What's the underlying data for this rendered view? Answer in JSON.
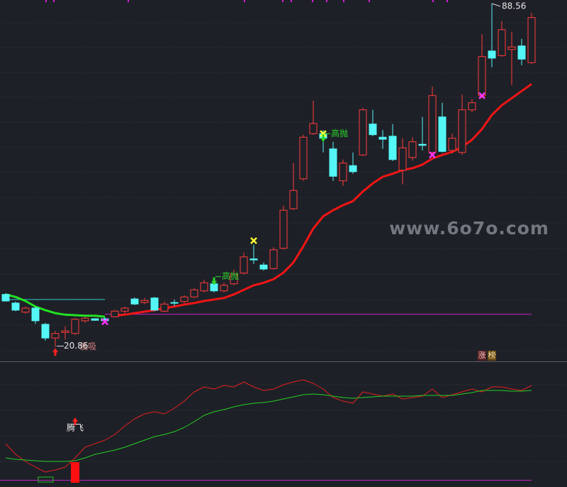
{
  "chart_data": [
    {
      "type": "candlestick",
      "open": [
        31.2,
        29.5,
        27.7,
        28.5,
        25.3,
        22.6,
        23.7,
        23.5,
        26.0,
        26.4,
        26.4,
        26.8,
        27.9,
        30.3,
        29.6,
        30.5,
        27.9,
        29.6,
        29.8,
        30.7,
        31.9,
        33.3,
        31.9,
        33.3,
        35.4,
        38.2,
        37.0,
        36.3,
        40.3,
        48.1,
        54.0,
        62.9,
        62.9,
        59.9,
        53.6,
        56.6,
        58.7,
        64.8,
        62.2,
        62.4,
        55.7,
        58.2,
        60.8,
        59.2,
        66.2,
        59.6,
        59.2,
        67.6,
        70.4,
        79.2,
        78.3,
        79.5,
        80.2,
        76.9
      ],
      "high": [
        31.4,
        29.8,
        28.8,
        28.8,
        25.6,
        24.0,
        24.9,
        26.5,
        26.8,
        26.5,
        26.7,
        28.1,
        28.8,
        30.6,
        30.5,
        30.7,
        29.8,
        30.2,
        31.0,
        32.4,
        34.1,
        33.8,
        33.5,
        36.1,
        39.4,
        41.0,
        37.5,
        40.5,
        48.7,
        57.1,
        62.7,
        69.4,
        63.6,
        61.3,
        57.8,
        59.2,
        68.0,
        67.6,
        63.6,
        64.8,
        62.0,
        62.2,
        66.2,
        72.2,
        69.0,
        62.9,
        70.6,
        69.7,
        82.5,
        88.56,
        85.1,
        83.0,
        81.6,
        86.7
      ],
      "low": [
        29.8,
        27.9,
        27.4,
        25.4,
        22.1,
        20.86,
        22.3,
        23.2,
        25.6,
        26.0,
        25.8,
        26.7,
        27.4,
        29.1,
        29.3,
        27.9,
        27.7,
        28.9,
        29.5,
        30.5,
        31.6,
        31.6,
        31.6,
        33.0,
        35.1,
        37.2,
        35.9,
        36.1,
        40.0,
        47.8,
        53.6,
        62.7,
        59.2,
        53.6,
        52.6,
        55.0,
        58.5,
        62.4,
        59.9,
        57.5,
        52.9,
        57.6,
        59.6,
        58.7,
        59.2,
        59.0,
        58.7,
        67.1,
        69.9,
        76.0,
        78.1,
        72.5,
        76.4,
        76.7
      ],
      "close": [
        29.9,
        28.1,
        28.5,
        26.0,
        22.6,
        23.5,
        24.0,
        26.3,
        26.5,
        26.1,
        26.0,
        27.9,
        28.5,
        29.3,
        30.0,
        28.1,
        29.3,
        29.5,
        30.7,
        32.1,
        33.5,
        31.9,
        33.0,
        35.2,
        38.6,
        38.0,
        36.2,
        40.0,
        47.8,
        51.7,
        62.2,
        64.9,
        62.0,
        54.5,
        57.1,
        55.4,
        67.6,
        62.7,
        61.8,
        57.8,
        60.1,
        61.3,
        60.6,
        70.4,
        59.4,
        62.0,
        67.6,
        69.0,
        78.1,
        77.8,
        83.4,
        80.0,
        77.6,
        85.8
      ],
      "up_color": "#ff3b3b",
      "down_color": "#54f6f6",
      "ylim": [
        19.26,
        89.26
      ],
      "series": [
        {
          "color": "#22e222",
          "values": [
            31.2,
            30.7,
            29.9,
            28.8,
            28.1,
            27.5,
            27.2,
            27.1,
            27.0,
            27.0,
            26.8,
            null,
            null,
            null,
            null,
            null,
            null,
            null,
            null,
            null,
            null,
            null,
            null,
            null,
            null,
            null,
            null,
            null,
            null,
            null,
            null,
            null,
            null,
            null,
            null,
            null,
            null,
            null,
            null,
            null,
            null,
            null,
            null,
            null,
            null,
            null,
            null,
            null,
            null,
            null,
            null,
            null,
            null,
            null
          ]
        },
        {
          "color": "#f01515",
          "values": [
            null,
            null,
            null,
            null,
            null,
            null,
            null,
            null,
            null,
            null,
            null,
            27.0,
            27.2,
            27.5,
            27.8,
            28.1,
            28.5,
            28.8,
            29.2,
            29.5,
            29.9,
            30.2,
            30.5,
            31.2,
            32.1,
            33.0,
            33.5,
            34.2,
            35.5,
            37.5,
            40.7,
            44.2,
            46.6,
            47.8,
            48.8,
            49.6,
            51.5,
            53.1,
            54.4,
            55.0,
            55.7,
            56.1,
            56.8,
            58.0,
            58.7,
            59.3,
            60.3,
            61.7,
            63.8,
            66.6,
            68.5,
            69.9,
            71.3,
            72.7
          ]
        }
      ],
      "levels": [
        {
          "value": 30.2,
          "color": "#37c8d0",
          "from": 0,
          "to": 10
        },
        {
          "value": 27.3,
          "color": "#c71fc7",
          "from": 10,
          "to": 53
        }
      ],
      "markers": [
        {
          "index": 10,
          "value": 25.8,
          "color": "#ff33ff"
        },
        {
          "index": 43,
          "value": 58.7,
          "color": "#ff33ff"
        },
        {
          "index": 48,
          "value": 70.4,
          "color": "#ff33ff"
        },
        {
          "index": 25,
          "value": 41.8,
          "color": "#ffff33"
        },
        {
          "index": 32,
          "value": 62.9,
          "color": "#ffff33"
        }
      ],
      "annotations": [
        {
          "text": "高抛",
          "index": 21,
          "value": 34.7,
          "arrow": "down",
          "color": "#2bd62b"
        },
        {
          "text": "高抛",
          "index": 32,
          "value": 62.9,
          "arrow": "down",
          "color": "#2bd62b"
        },
        {
          "text": "低吸",
          "index": 5,
          "value": 20.9,
          "arrow": "up",
          "color": "#d88080"
        }
      ]
    },
    {
      "type": "line",
      "ylim": [
        0,
        170
      ],
      "series": [
        {
          "color": "#e02020",
          "values": [
            51,
            36,
            26,
            18,
            11,
            14,
            18,
            31,
            46,
            51,
            56,
            64,
            76,
            86,
            93,
            96,
            93,
            101,
            111,
            124,
            131,
            128,
            133,
            131,
            138,
            131,
            126,
            128,
            134,
            138,
            141,
            136,
            128,
            116,
            111,
            108,
            124,
            121,
            118,
            121,
            114,
            116,
            118,
            128,
            116,
            120,
            124,
            128,
            124,
            131,
            131,
            128,
            126,
            133
          ]
        },
        {
          "color": "#22d022",
          "values": [
            31,
            29,
            28,
            27,
            26,
            26,
            26,
            27,
            31,
            36,
            39,
            42,
            46,
            51,
            56,
            61,
            64,
            68,
            74,
            82,
            91,
            96,
            99,
            103,
            106,
            108,
            109,
            111,
            114,
            117,
            120,
            121,
            120,
            118,
            116,
            115,
            116,
            117,
            118,
            118,
            118,
            118,
            119,
            119,
            119,
            119,
            121,
            123,
            126,
            126,
            126,
            125,
            125,
            126
          ]
        }
      ],
      "signal": {
        "index": 7,
        "value": 25,
        "color": "#ff1010"
      },
      "annotations": [
        {
          "text": "腾飞",
          "index": 7,
          "color": "#e8e8e8"
        }
      ]
    }
  ],
  "badge": [
    "涨",
    "榜"
  ],
  "watermark": "www.6o7o.com"
}
